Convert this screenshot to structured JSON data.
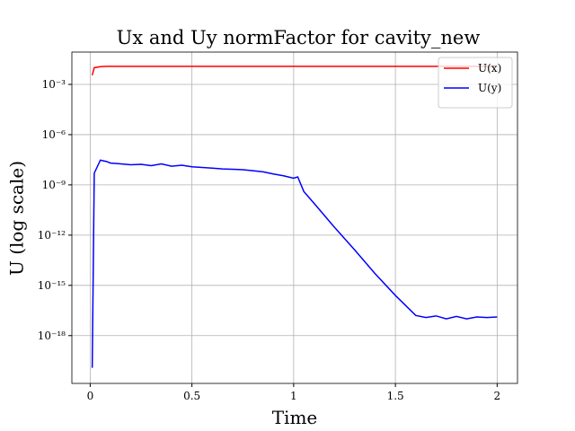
{
  "chart_data": {
    "type": "line",
    "title": "Ux and Uy normFactor for cavity_new",
    "x_label": "Time",
    "y_label": "U (log scale)",
    "x": [
      0.01,
      0.02,
      0.05,
      0.08,
      0.1,
      0.15,
      0.2,
      0.25,
      0.3,
      0.35,
      0.4,
      0.45,
      0.5,
      0.55,
      0.6,
      0.65,
      0.7,
      0.75,
      0.8,
      0.85,
      0.9,
      0.95,
      1.0,
      1.02,
      1.05,
      1.1,
      1.2,
      1.3,
      1.4,
      1.5,
      1.6,
      1.65,
      1.7,
      1.75,
      1.8,
      1.85,
      1.9,
      1.95,
      2.0
    ],
    "series": [
      {
        "name": "U(x)",
        "color": "#ff0000",
        "values": [
          0.0035,
          0.01,
          0.0115,
          0.012,
          0.012,
          0.012,
          0.012,
          0.012,
          0.012,
          0.012,
          0.012,
          0.012,
          0.012,
          0.012,
          0.012,
          0.012,
          0.012,
          0.012,
          0.012,
          0.012,
          0.012,
          0.012,
          0.012,
          0.012,
          0.012,
          0.012,
          0.012,
          0.012,
          0.012,
          0.012,
          0.012,
          0.012,
          0.012,
          0.012,
          0.012,
          0.012,
          0.012,
          0.012,
          0.012
        ]
      },
      {
        "name": "U(y)",
        "color": "#0000ff",
        "values": [
          1.2e-20,
          5e-09,
          3e-08,
          2.5e-08,
          2e-08,
          1.8e-08,
          1.6e-08,
          1.7e-08,
          1.4e-08,
          1.8e-08,
          1.3e-08,
          1.5e-08,
          1.2e-08,
          1.1e-08,
          1e-08,
          9e-09,
          8.5e-09,
          8e-09,
          7e-09,
          6e-09,
          4.5e-09,
          3.5e-09,
          2.5e-09,
          3e-09,
          4e-10,
          8e-11,
          3e-12,
          1.3e-13,
          5e-15,
          2.5e-16,
          1.6e-17,
          1.2e-17,
          1.5e-17,
          1e-17,
          1.4e-17,
          1e-17,
          1.3e-17,
          1.2e-17,
          1.3e-17
        ]
      }
    ],
    "xlim": [
      -0.09,
      2.1
    ],
    "xticks": [
      0.0,
      0.5,
      1.0,
      1.5,
      2.0
    ],
    "ylim": [
      1.4e-21,
      0.085
    ],
    "log_y": true,
    "yticks": [
      {
        "value": 1e-18,
        "label": "10⁻¹⁸"
      },
      {
        "value": 1e-15,
        "label": "10⁻¹⁵"
      },
      {
        "value": 1e-12,
        "label": "10⁻¹²"
      },
      {
        "value": 1e-09,
        "label": "10⁻⁹"
      },
      {
        "value": 1e-06,
        "label": "10⁻⁶"
      },
      {
        "value": 0.001,
        "label": "10⁻³"
      }
    ],
    "grid": true,
    "legend": "upper right"
  }
}
